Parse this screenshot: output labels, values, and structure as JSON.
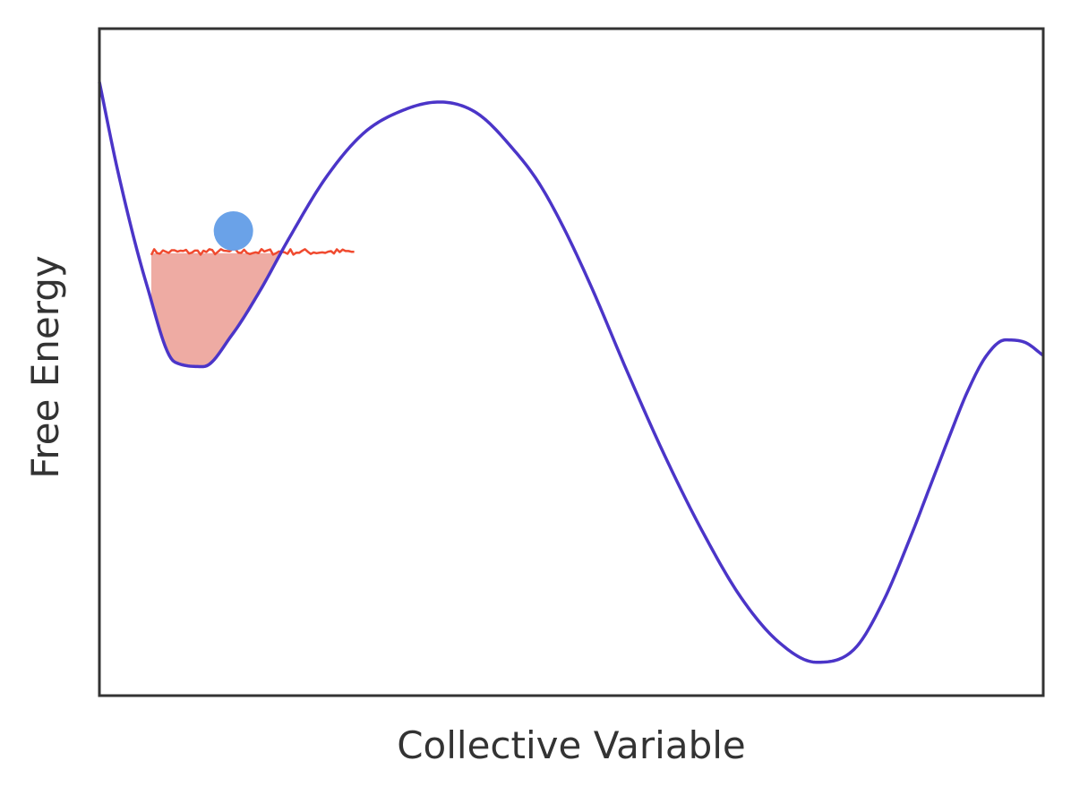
{
  "chart_data": {
    "type": "line",
    "title": "",
    "xlabel": "Collective Variable",
    "ylabel": "Free Energy",
    "xlim": [
      0,
      1
    ],
    "ylim": [
      -1.5,
      1.5
    ],
    "grid": false,
    "series": [
      {
        "color": "#4b35c8",
        "description_points": {
          "x": [
            0.0,
            0.02,
            0.05,
            0.08,
            0.11,
            0.14,
            0.17,
            0.2,
            0.24,
            0.28,
            0.32,
            0.36,
            0.4,
            0.44,
            0.465,
            0.49,
            0.52,
            0.56,
            0.6,
            0.64,
            0.68,
            0.72,
            0.76,
            0.8,
            0.83,
            0.86,
            0.88,
            0.89,
            0.9,
            0.92,
            0.94,
            0.96,
            0.98,
            1.0
          ],
          "y": [
            1.26,
            0.85,
            0.35,
            0.0,
            -0.02,
            0.12,
            0.32,
            0.55,
            0.83,
            1.03,
            1.13,
            1.17,
            1.12,
            0.95,
            0.81,
            0.62,
            0.35,
            -0.05,
            -0.43,
            -0.77,
            -1.06,
            -1.26,
            -1.35,
            -1.29,
            -1.08,
            -0.78,
            -0.56,
            -0.45,
            -0.34,
            -0.13,
            0.03,
            0.1,
            0.09,
            0.03
          ]
        }
      }
    ],
    "fill_region": {
      "color": "#eeaba3",
      "x_range": [
        0.055,
        0.27
      ],
      "level": 0.49
    },
    "noise_line": {
      "color": "#f04a2f",
      "x_range": [
        0.055,
        0.27
      ],
      "level": 0.49
    },
    "ball": {
      "color": "#6aa2e8",
      "x": 0.142,
      "y": 0.59
    }
  }
}
